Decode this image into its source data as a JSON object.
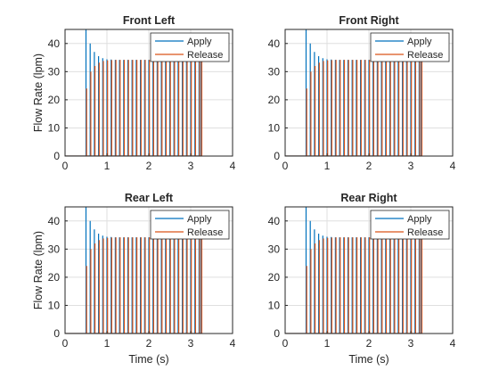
{
  "chart_data": [
    {
      "type": "line",
      "title": "Front Left",
      "xlabel": "",
      "ylabel": "Flow Rate (lpm)",
      "xlim": [
        0,
        4
      ],
      "ylim": [
        0,
        45
      ],
      "xticks": [
        "0",
        "1",
        "2",
        "3",
        "4"
      ],
      "yticks": [
        "0",
        "10",
        "20",
        "30",
        "40"
      ],
      "grid": true,
      "legend": "top-right",
      "pulses": {
        "start": 0.5,
        "end": 3.25,
        "period": 0.1,
        "count": 28
      },
      "series": [
        {
          "name": "Apply",
          "color": "#0072BD",
          "peaks": [
            45,
            40,
            37,
            35.5,
            34.8,
            34.4,
            34.3,
            34.2,
            34.2,
            34.2,
            34.2,
            34.2,
            34.2,
            34.2,
            34.2,
            34.2,
            34.2,
            34.2,
            34.2,
            34.2,
            34.2,
            34.2,
            34.2,
            34.2,
            34.2,
            34.2,
            34.2,
            34.2
          ]
        },
        {
          "name": "Release",
          "color": "#D95319",
          "peaks": [
            24,
            30,
            32,
            33.2,
            33.8,
            34,
            34.1,
            34.2,
            34.2,
            34.2,
            34.2,
            34.2,
            34.2,
            34.2,
            34.2,
            34.2,
            34.2,
            34.2,
            34.2,
            34.2,
            34.2,
            34.2,
            34.2,
            34.2,
            34.2,
            34.2,
            34.2,
            34.2
          ]
        }
      ]
    },
    {
      "type": "line",
      "title": "Front Right",
      "xlabel": "",
      "ylabel": "",
      "xlim": [
        0,
        4
      ],
      "ylim": [
        0,
        45
      ],
      "xticks": [
        "0",
        "1",
        "2",
        "3",
        "4"
      ],
      "yticks": [
        "0",
        "10",
        "20",
        "30",
        "40"
      ],
      "grid": true,
      "legend": "top-right",
      "pulses": {
        "start": 0.5,
        "end": 3.25,
        "period": 0.1,
        "count": 28
      },
      "series": [
        {
          "name": "Apply",
          "color": "#0072BD",
          "peaks": [
            45,
            40,
            37,
            35.5,
            34.8,
            34.4,
            34.3,
            34.2,
            34.2,
            34.2,
            34.2,
            34.2,
            34.2,
            34.2,
            34.2,
            34.2,
            34.2,
            34.2,
            34.2,
            34.2,
            34.2,
            34.2,
            34.2,
            34.2,
            34.2,
            34.2,
            34.2,
            34.2
          ]
        },
        {
          "name": "Release",
          "color": "#D95319",
          "peaks": [
            24,
            30,
            32,
            33.2,
            33.8,
            34,
            34.1,
            34.2,
            34.2,
            34.2,
            34.2,
            34.2,
            34.2,
            34.2,
            34.2,
            34.2,
            34.2,
            34.2,
            34.2,
            34.2,
            34.2,
            34.2,
            34.2,
            34.2,
            34.2,
            34.2,
            34.2,
            34.2
          ]
        }
      ]
    },
    {
      "type": "line",
      "title": "Rear Left",
      "xlabel": "Time (s)",
      "ylabel": "Flow Rate (lpm)",
      "xlim": [
        0,
        4
      ],
      "ylim": [
        0,
        45
      ],
      "xticks": [
        "0",
        "1",
        "2",
        "3",
        "4"
      ],
      "yticks": [
        "0",
        "10",
        "20",
        "30",
        "40"
      ],
      "grid": true,
      "legend": "top-right",
      "pulses": {
        "start": 0.5,
        "end": 3.25,
        "period": 0.1,
        "count": 28
      },
      "series": [
        {
          "name": "Apply",
          "color": "#0072BD",
          "peaks": [
            45,
            40,
            37,
            35.5,
            34.8,
            34.4,
            34.3,
            34.2,
            34.2,
            34.2,
            34.2,
            34.2,
            34.2,
            34.2,
            34.2,
            34.2,
            34.2,
            34.2,
            34.2,
            34.2,
            34.2,
            34.2,
            34.2,
            34.2,
            34.2,
            34.2,
            34.2,
            34.2
          ]
        },
        {
          "name": "Release",
          "color": "#D95319",
          "peaks": [
            24,
            30,
            32,
            33.2,
            33.8,
            34,
            34.1,
            34.2,
            34.2,
            34.2,
            34.2,
            34.2,
            34.2,
            34.2,
            34.2,
            34.2,
            34.2,
            34.2,
            34.2,
            34.2,
            34.2,
            34.2,
            34.2,
            34.2,
            34.2,
            34.2,
            34.2,
            34.2
          ]
        }
      ]
    },
    {
      "type": "line",
      "title": "Rear Right",
      "xlabel": "Time (s)",
      "ylabel": "",
      "xlim": [
        0,
        4
      ],
      "ylim": [
        0,
        45
      ],
      "xticks": [
        "0",
        "1",
        "2",
        "3",
        "4"
      ],
      "yticks": [
        "0",
        "10",
        "20",
        "30",
        "40"
      ],
      "grid": true,
      "legend": "top-right",
      "pulses": {
        "start": 0.5,
        "end": 3.25,
        "period": 0.1,
        "count": 28
      },
      "series": [
        {
          "name": "Apply",
          "color": "#0072BD",
          "peaks": [
            45,
            40,
            37,
            35.5,
            34.8,
            34.4,
            34.3,
            34.2,
            34.2,
            34.2,
            34.2,
            34.2,
            34.2,
            34.2,
            34.2,
            34.2,
            34.2,
            34.2,
            34.2,
            34.2,
            34.2,
            34.2,
            34.2,
            34.2,
            34.2,
            34.2,
            34.2,
            34.2
          ]
        },
        {
          "name": "Release",
          "color": "#D95319",
          "peaks": [
            24,
            30,
            32,
            33.2,
            33.8,
            34,
            34.1,
            34.2,
            34.2,
            34.2,
            34.2,
            34.2,
            34.2,
            34.2,
            34.2,
            34.2,
            34.2,
            34.2,
            34.2,
            34.2,
            34.2,
            34.2,
            34.2,
            34.2,
            34.2,
            34.2,
            34.2,
            34.2
          ]
        }
      ]
    }
  ]
}
